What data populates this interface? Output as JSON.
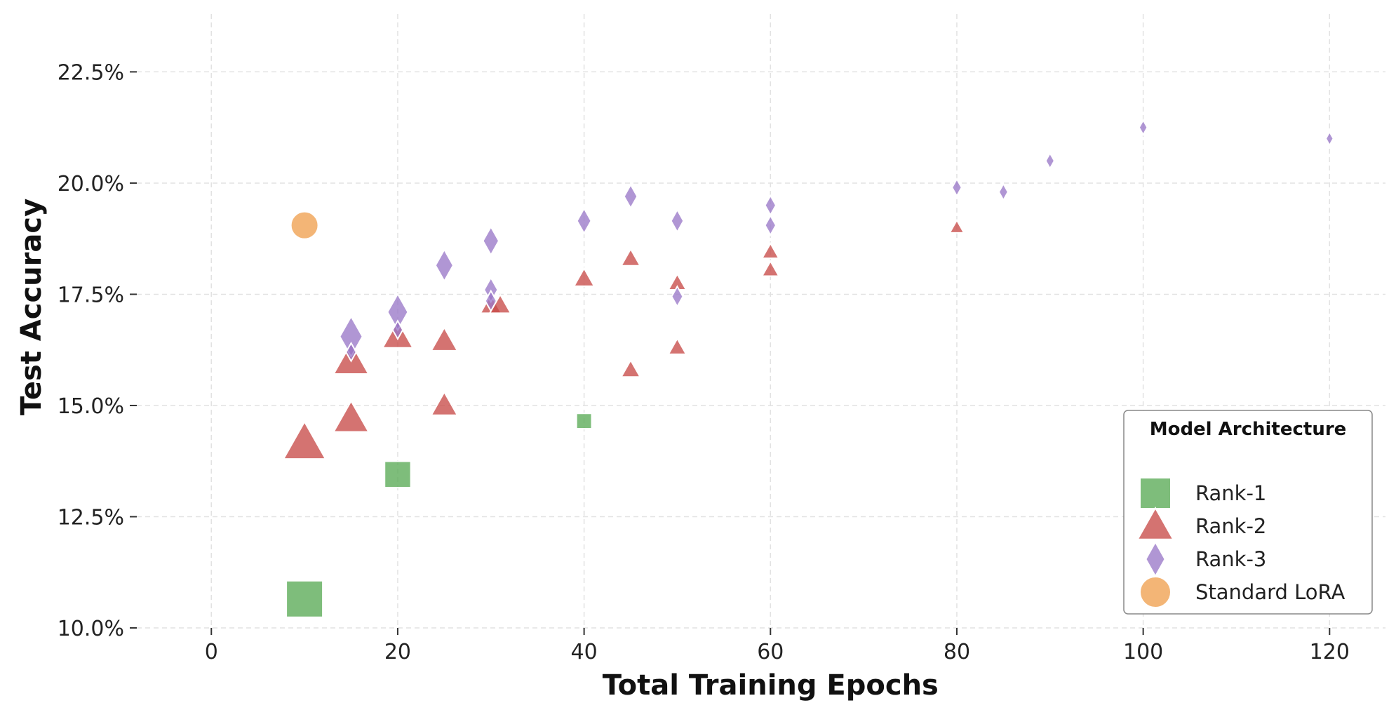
{
  "chart_data": {
    "type": "scatter",
    "xlabel": "Total Training Epochs",
    "ylabel": "Test Accuracy",
    "xlim": [
      -8,
      126
    ],
    "ylim": [
      10.0,
      23.8
    ],
    "xticks": [
      0,
      20,
      40,
      60,
      80,
      100,
      120
    ],
    "yticks": [
      10.0,
      12.5,
      15.0,
      17.5,
      20.0,
      22.5
    ],
    "xtick_labels": [
      "0",
      "20",
      "40",
      "60",
      "80",
      "100",
      "120"
    ],
    "ytick_labels": [
      "10.0%",
      "12.5%",
      "15.0%",
      "17.5%",
      "20.0%",
      "22.5%"
    ],
    "grid": true,
    "legend": {
      "title": "Model Architecture",
      "location": "lower-right",
      "entries": [
        "Rank-1",
        "Rank-2",
        "Rank-3",
        "Standard LoRA"
      ]
    },
    "series": [
      {
        "name": "Rank-1",
        "marker": "square",
        "color": "#5aab56",
        "points": [
          {
            "x": 10,
            "y": 10.65,
            "size": 1.0
          },
          {
            "x": 20,
            "y": 13.45,
            "size": 0.72
          },
          {
            "x": 40,
            "y": 14.65,
            "size": 0.42
          }
        ]
      },
      {
        "name": "Rank-2",
        "marker": "triangle",
        "color": "#c84c49",
        "points": [
          {
            "x": 10,
            "y": 14.15,
            "size": 1.0
          },
          {
            "x": 15,
            "y": 14.7,
            "size": 0.83
          },
          {
            "x": 15,
            "y": 16.0,
            "size": 0.83
          },
          {
            "x": 20,
            "y": 16.55,
            "size": 0.72
          },
          {
            "x": 25,
            "y": 15.0,
            "size": 0.62
          },
          {
            "x": 25,
            "y": 16.45,
            "size": 0.62
          },
          {
            "x": 30,
            "y": 17.25,
            "size": 0.5
          },
          {
            "x": 31,
            "y": 17.25,
            "size": 0.5
          },
          {
            "x": 40,
            "y": 17.85,
            "size": 0.48
          },
          {
            "x": 45,
            "y": 18.3,
            "size": 0.45
          },
          {
            "x": 45,
            "y": 15.8,
            "size": 0.45
          },
          {
            "x": 50,
            "y": 17.75,
            "size": 0.42
          },
          {
            "x": 50,
            "y": 16.3,
            "size": 0.42
          },
          {
            "x": 60,
            "y": 18.45,
            "size": 0.4
          },
          {
            "x": 60,
            "y": 18.05,
            "size": 0.4
          },
          {
            "x": 80,
            "y": 19.0,
            "size": 0.34
          }
        ]
      },
      {
        "name": "Rank-3",
        "marker": "diamond",
        "color": "#9a78c8",
        "points": [
          {
            "x": 15,
            "y": 16.55,
            "size": 1.0
          },
          {
            "x": 15,
            "y": 16.2,
            "size": 0.45
          },
          {
            "x": 20,
            "y": 17.1,
            "size": 0.9
          },
          {
            "x": 20,
            "y": 16.7,
            "size": 0.45
          },
          {
            "x": 25,
            "y": 18.15,
            "size": 0.78
          },
          {
            "x": 30,
            "y": 18.7,
            "size": 0.7
          },
          {
            "x": 30,
            "y": 17.6,
            "size": 0.6
          },
          {
            "x": 30,
            "y": 17.35,
            "size": 0.5
          },
          {
            "x": 40,
            "y": 19.15,
            "size": 0.62
          },
          {
            "x": 45,
            "y": 19.7,
            "size": 0.58
          },
          {
            "x": 50,
            "y": 19.15,
            "size": 0.55
          },
          {
            "x": 50,
            "y": 17.45,
            "size": 0.5
          },
          {
            "x": 60,
            "y": 19.5,
            "size": 0.48
          },
          {
            "x": 60,
            "y": 19.05,
            "size": 0.48
          },
          {
            "x": 80,
            "y": 19.9,
            "size": 0.42
          },
          {
            "x": 85,
            "y": 19.8,
            "size": 0.4
          },
          {
            "x": 90,
            "y": 20.5,
            "size": 0.38
          },
          {
            "x": 100,
            "y": 21.25,
            "size": 0.36
          },
          {
            "x": 120,
            "y": 21.0,
            "size": 0.33
          }
        ]
      },
      {
        "name": "Standard LoRA",
        "marker": "circle",
        "color": "#f0a050",
        "points": [
          {
            "x": 10,
            "y": 19.05,
            "size": 0.75
          }
        ]
      }
    ]
  }
}
